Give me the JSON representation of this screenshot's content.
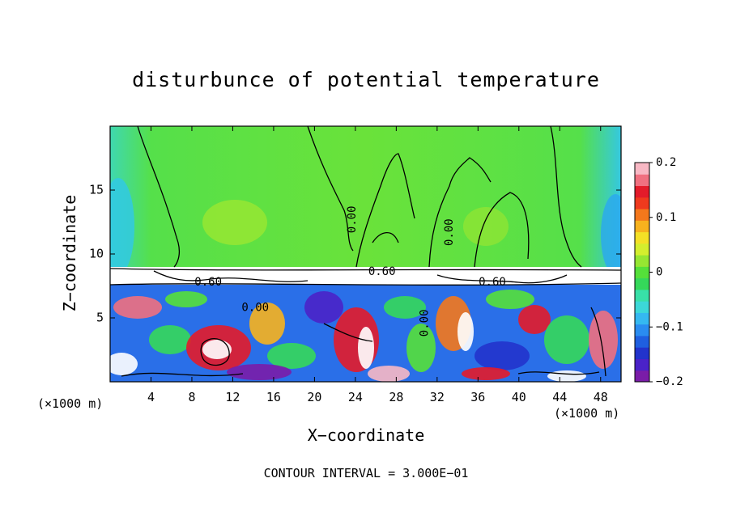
{
  "chart_data": {
    "type": "heatmap",
    "title": "disturbunce of potential temperature",
    "xlabel": "X−coordinate",
    "ylabel": "Z−coordinate",
    "x_unit": "(×1000 m)",
    "y_unit": "(×1000 m)",
    "xlim": [
      0,
      50
    ],
    "ylim": [
      0,
      20
    ],
    "xticks": [
      4,
      8,
      12,
      16,
      20,
      24,
      28,
      32,
      36,
      40,
      44,
      48
    ],
    "xtick_labels": [
      "4",
      "8",
      "12",
      "16",
      "20",
      "24",
      "28",
      "32",
      "36",
      "40",
      "44",
      "48"
    ],
    "yticks": [
      5,
      10,
      15
    ],
    "ytick_labels": [
      "5",
      "10",
      "15"
    ],
    "colorbar": {
      "min": -0.2,
      "max": 0.2,
      "ticks": [
        0.2,
        0.1,
        0,
        -0.1,
        -0.2
      ],
      "tick_labels": [
        "0.2",
        "0.1",
        "0",
        "−0.1",
        "−0.2"
      ],
      "colors": [
        "#7a1ca8",
        "#4a22c8",
        "#2233cc",
        "#1f5fe0",
        "#2a8cf0",
        "#35b8f0",
        "#3cd8d8",
        "#38e0a8",
        "#35d85a",
        "#55e03a",
        "#96e632",
        "#d4ee2e",
        "#f4e026",
        "#f7b21e",
        "#f4781c",
        "#ef3a1e",
        "#e31b2a",
        "#f07080",
        "#f8b8c4"
      ]
    },
    "contour_labels": [
      {
        "text": "0.00",
        "x": 23.7,
        "z": 12.7,
        "rotate": -90
      },
      {
        "text": "0.00",
        "x": 33.2,
        "z": 11.7,
        "rotate": -90
      },
      {
        "text": "0.60",
        "x": 26.6,
        "z": 8.6,
        "rotate": 0
      },
      {
        "text": "0.00",
        "x": 14.2,
        "z": 5.8,
        "rotate": 0
      },
      {
        "text": "0.00",
        "x": 30.8,
        "z": 4.6,
        "rotate": -90
      },
      {
        "text": "0.60",
        "x": 37.4,
        "z": 7.8,
        "rotate": 0
      },
      {
        "text": "0.60",
        "x": 9.6,
        "z": 7.8,
        "rotate": 0
      }
    ],
    "contour_interval_text": "CONTOUR INTERVAL = 3.000E−01"
  }
}
